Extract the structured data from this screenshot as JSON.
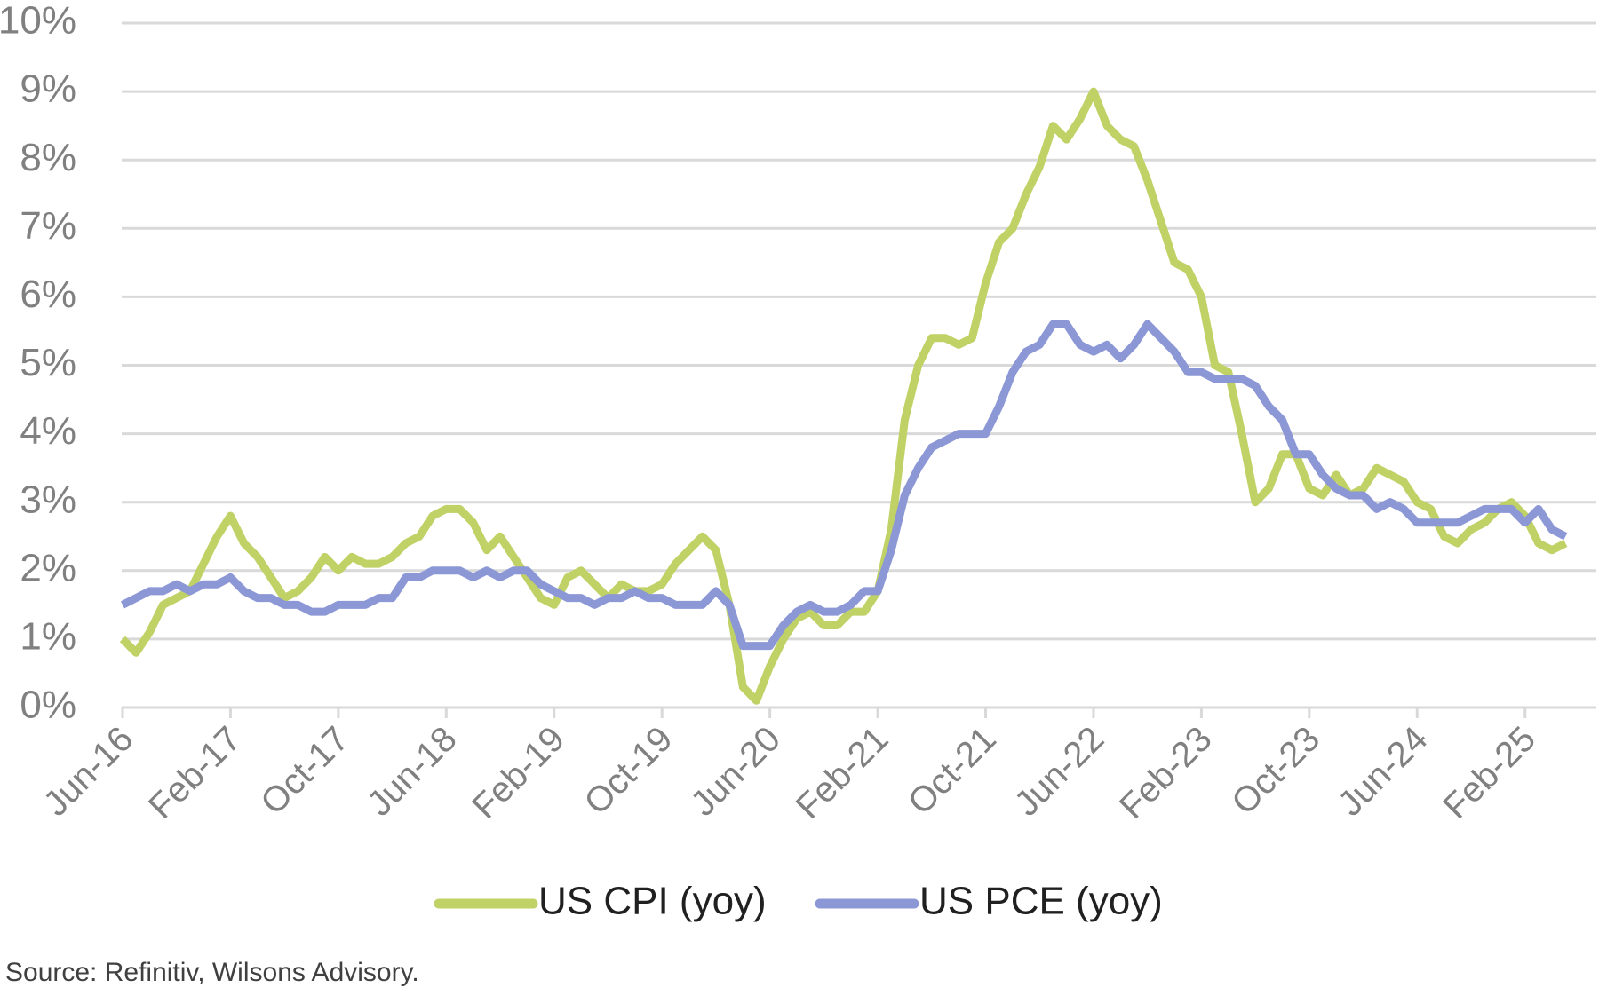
{
  "chart_data": {
    "type": "line",
    "categories": [
      "Jun-16",
      null,
      null,
      null,
      null,
      null,
      null,
      null,
      "Feb-17",
      null,
      null,
      null,
      null,
      null,
      null,
      null,
      "Oct-17",
      null,
      null,
      null,
      null,
      null,
      null,
      null,
      "Jun-18",
      null,
      null,
      null,
      null,
      null,
      null,
      null,
      "Feb-19",
      null,
      null,
      null,
      null,
      null,
      null,
      null,
      "Oct-19",
      null,
      null,
      null,
      null,
      null,
      null,
      null,
      "Jun-20",
      null,
      null,
      null,
      null,
      null,
      null,
      null,
      "Feb-21",
      null,
      null,
      null,
      null,
      null,
      null,
      null,
      "Oct-21",
      null,
      null,
      null,
      null,
      null,
      null,
      null,
      "Jun-22",
      null,
      null,
      null,
      null,
      null,
      null,
      null,
      "Feb-23",
      null,
      null,
      null,
      null,
      null,
      null,
      null,
      "Oct-23",
      null,
      null,
      null,
      null,
      null,
      null,
      null,
      "Jun-24",
      null,
      null,
      null,
      null,
      null,
      null,
      null,
      "Feb-25",
      null,
      null,
      null
    ],
    "series": [
      {
        "name": "US CPI (yoy)",
        "color": "#c0d166",
        "values": [
          1.0,
          0.8,
          1.1,
          1.5,
          1.6,
          1.7,
          2.1,
          2.5,
          2.8,
          2.4,
          2.2,
          1.9,
          1.6,
          1.7,
          1.9,
          2.2,
          2.0,
          2.2,
          2.1,
          2.1,
          2.2,
          2.4,
          2.5,
          2.8,
          2.9,
          2.9,
          2.7,
          2.3,
          2.5,
          2.2,
          1.9,
          1.6,
          1.5,
          1.9,
          2.0,
          1.8,
          1.6,
          1.8,
          1.7,
          1.7,
          1.8,
          2.1,
          2.3,
          2.5,
          2.3,
          1.5,
          0.3,
          0.1,
          0.6,
          1.0,
          1.3,
          1.4,
          1.2,
          1.2,
          1.4,
          1.4,
          1.7,
          2.6,
          4.2,
          5.0,
          5.4,
          5.4,
          5.3,
          5.4,
          6.2,
          6.8,
          7.0,
          7.5,
          7.9,
          8.5,
          8.3,
          8.6,
          9.0,
          8.5,
          8.3,
          8.2,
          7.7,
          7.1,
          6.5,
          6.4,
          6.0,
          5.0,
          4.9,
          4.0,
          3.0,
          3.2,
          3.7,
          3.7,
          3.2,
          3.1,
          3.4,
          3.1,
          3.2,
          3.5,
          3.4,
          3.3,
          3.0,
          2.9,
          2.5,
          2.4,
          2.6,
          2.7,
          2.9,
          3.0,
          2.8,
          2.4,
          2.3,
          2.4
        ]
      },
      {
        "name": "US PCE (yoy)",
        "color": "#8c97d6",
        "values": [
          1.5,
          1.6,
          1.7,
          1.7,
          1.8,
          1.7,
          1.8,
          1.8,
          1.9,
          1.7,
          1.6,
          1.6,
          1.5,
          1.5,
          1.4,
          1.4,
          1.5,
          1.5,
          1.5,
          1.6,
          1.6,
          1.9,
          1.9,
          2.0,
          2.0,
          2.0,
          1.9,
          2.0,
          1.9,
          2.0,
          2.0,
          1.8,
          1.7,
          1.6,
          1.6,
          1.5,
          1.6,
          1.6,
          1.7,
          1.6,
          1.6,
          1.5,
          1.5,
          1.5,
          1.7,
          1.5,
          0.9,
          0.9,
          0.9,
          1.2,
          1.4,
          1.5,
          1.4,
          1.4,
          1.5,
          1.7,
          1.7,
          2.3,
          3.1,
          3.5,
          3.8,
          3.9,
          4.0,
          4.0,
          4.0,
          4.4,
          4.9,
          5.2,
          5.3,
          5.6,
          5.6,
          5.3,
          5.2,
          5.3,
          5.1,
          5.3,
          5.6,
          5.4,
          5.2,
          4.9,
          4.9,
          4.8,
          4.8,
          4.8,
          4.7,
          4.4,
          4.2,
          3.7,
          3.7,
          3.4,
          3.2,
          3.1,
          3.1,
          2.9,
          3.0,
          2.9,
          2.7,
          2.7,
          2.7,
          2.7,
          2.8,
          2.9,
          2.9,
          2.9,
          2.7,
          2.9,
          2.6,
          2.5
        ]
      }
    ],
    "ylim": [
      0,
      10
    ],
    "yticks": [
      {
        "value": 0,
        "label": "0%"
      },
      {
        "value": 1,
        "label": "1%"
      },
      {
        "value": 2,
        "label": "2%"
      },
      {
        "value": 3,
        "label": "3%"
      },
      {
        "value": 4,
        "label": "4%"
      },
      {
        "value": 5,
        "label": "5%"
      },
      {
        "value": 6,
        "label": "6%"
      },
      {
        "value": 7,
        "label": "7%"
      },
      {
        "value": 8,
        "label": "8%"
      },
      {
        "value": 9,
        "label": "9%"
      },
      {
        "value": 10,
        "label": "10%"
      }
    ],
    "grid": true,
    "legend": "bottom",
    "source": "Source: Refinitiv, Wilsons Advisory."
  }
}
